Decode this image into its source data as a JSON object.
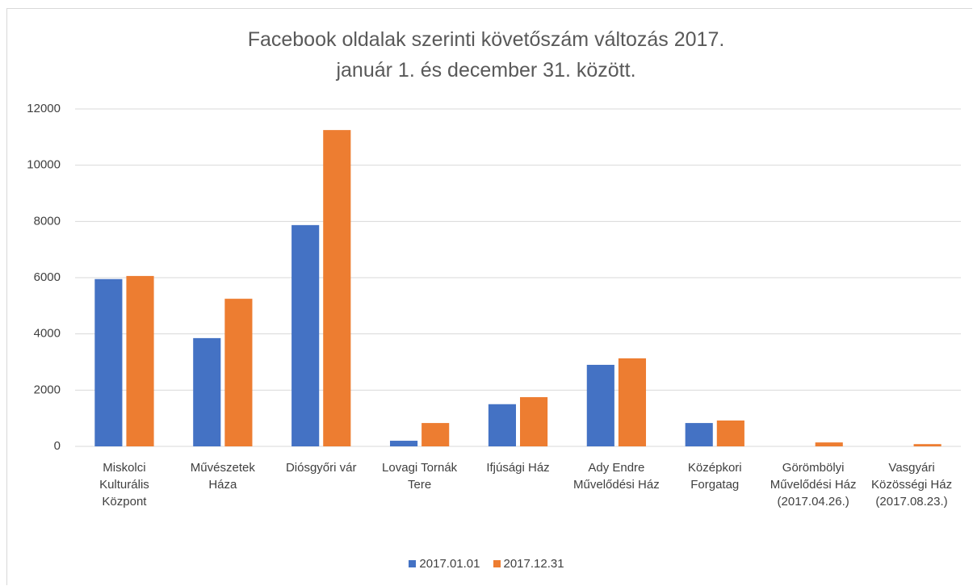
{
  "chart_data": {
    "type": "bar",
    "title": "Facebook oldalak szerinti követőszám változás 2017. január 1. és december 31. között.",
    "categories": [
      "Miskolci Kulturális Központ",
      "Művészetek Háza",
      "Diósgyőri vár",
      "Lovagi Tornák Tere",
      "Ifjúsági Ház",
      "Ady Endre Művelődési Ház",
      "Középkori Forgatag",
      "Görömbölyi Művelődési Ház (2017.04.26.)",
      "Vasgyári Közösségi Ház (2017.08.23.)"
    ],
    "series": [
      {
        "name": "2017.01.01",
        "color": "#4472c4",
        "values": [
          5950,
          3850,
          7870,
          200,
          1500,
          2900,
          830,
          0,
          0
        ]
      },
      {
        "name": "2017.12.31",
        "color": "#ed7d31",
        "values": [
          6060,
          5250,
          11250,
          830,
          1750,
          3130,
          920,
          140,
          80
        ]
      }
    ],
    "ylim": [
      0,
      12000
    ],
    "yticks": [
      0,
      2000,
      4000,
      6000,
      8000,
      10000,
      12000
    ],
    "grid": true,
    "legend": "bottom"
  }
}
